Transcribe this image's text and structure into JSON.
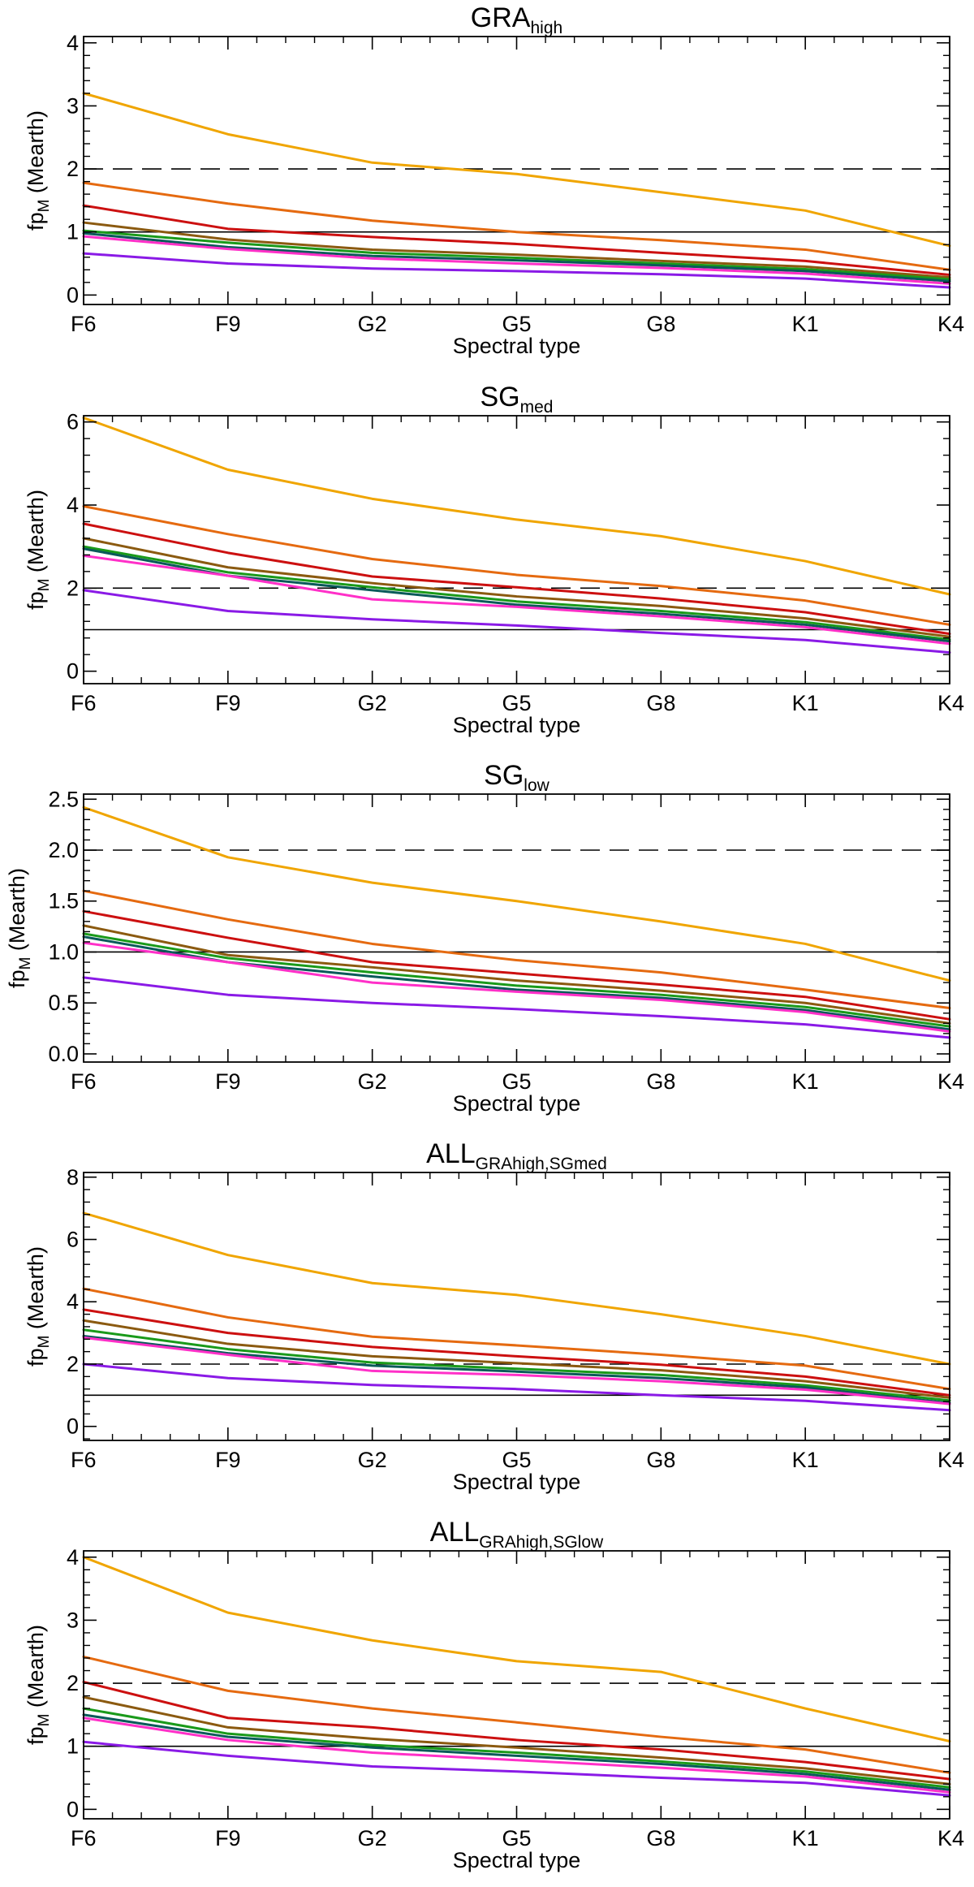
{
  "chart_data": [
    {
      "type": "line",
      "title": "GRA",
      "title_sub": "high",
      "xlabel": "Spectral type",
      "ylabel_main": "fp",
      "ylabel_sub": "M",
      "ylabel_tail": " (Mearth)",
      "categories": [
        "F6",
        "F9",
        "G2",
        "G5",
        "G8",
        "K1",
        "K4"
      ],
      "ylim": [
        -0.15,
        4.1
      ],
      "yticks": [
        0,
        1,
        2,
        3,
        4
      ],
      "ytick_labels": [
        "0",
        "1",
        "2",
        "3",
        "4"
      ],
      "yminor_step": 0.2,
      "reference_lines": [
        {
          "y": 2.0,
          "style": "dashed"
        },
        {
          "y": 1.0,
          "style": "solid"
        }
      ],
      "series": [
        {
          "color": "#F0A500",
          "values": [
            3.2,
            2.55,
            2.1,
            1.92,
            1.63,
            1.34,
            0.78
          ]
        },
        {
          "color": "#E56A10",
          "values": [
            1.78,
            1.45,
            1.18,
            1.0,
            0.87,
            0.72,
            0.4
          ]
        },
        {
          "color": "#CC1010",
          "values": [
            1.42,
            1.05,
            0.92,
            0.81,
            0.67,
            0.54,
            0.32
          ]
        },
        {
          "color": "#8B5A10",
          "values": [
            1.15,
            0.88,
            0.72,
            0.64,
            0.54,
            0.45,
            0.28
          ]
        },
        {
          "color": "#1A9A1A",
          "values": [
            1.02,
            0.83,
            0.67,
            0.59,
            0.5,
            0.41,
            0.25
          ]
        },
        {
          "color": "#0A5A5A",
          "values": [
            0.98,
            0.76,
            0.62,
            0.55,
            0.47,
            0.38,
            0.22
          ]
        },
        {
          "color": "#FF30C8",
          "values": [
            0.93,
            0.73,
            0.58,
            0.5,
            0.43,
            0.34,
            0.18
          ]
        },
        {
          "color": "#8A1AE6",
          "values": [
            0.66,
            0.5,
            0.42,
            0.38,
            0.33,
            0.26,
            0.12
          ]
        }
      ]
    },
    {
      "type": "line",
      "title": "SG",
      "title_sub": "med",
      "xlabel": "Spectral type",
      "ylabel_main": "fp",
      "ylabel_sub": "M",
      "ylabel_tail": " (Mearth)",
      "categories": [
        "F6",
        "F9",
        "G2",
        "G5",
        "G8",
        "K1",
        "K4"
      ],
      "ylim": [
        -0.3,
        6.15
      ],
      "yticks": [
        0,
        2,
        4,
        6
      ],
      "ytick_labels": [
        "0",
        "2",
        "4",
        "6"
      ],
      "yminor_step": 0.4,
      "reference_lines": [
        {
          "y": 2.0,
          "style": "dashed"
        },
        {
          "y": 1.0,
          "style": "solid"
        }
      ],
      "series": [
        {
          "color": "#F0A500",
          "values": [
            6.1,
            4.85,
            4.15,
            3.65,
            3.25,
            2.65,
            1.85
          ]
        },
        {
          "color": "#E56A10",
          "values": [
            3.97,
            3.3,
            2.7,
            2.32,
            2.05,
            1.7,
            1.12
          ]
        },
        {
          "color": "#CC1010",
          "values": [
            3.55,
            2.85,
            2.28,
            2.02,
            1.75,
            1.42,
            0.9
          ]
        },
        {
          "color": "#8B5A10",
          "values": [
            3.2,
            2.5,
            2.12,
            1.8,
            1.57,
            1.27,
            0.83
          ]
        },
        {
          "color": "#1A9A1A",
          "values": [
            3.0,
            2.38,
            2.02,
            1.68,
            1.45,
            1.18,
            0.76
          ]
        },
        {
          "color": "#0A5A5A",
          "values": [
            2.95,
            2.3,
            1.95,
            1.6,
            1.38,
            1.12,
            0.72
          ]
        },
        {
          "color": "#FF30C8",
          "values": [
            2.78,
            2.3,
            1.73,
            1.55,
            1.32,
            1.06,
            0.66
          ]
        },
        {
          "color": "#8A1AE6",
          "values": [
            1.95,
            1.45,
            1.25,
            1.1,
            0.92,
            0.75,
            0.45
          ]
        }
      ]
    },
    {
      "type": "line",
      "title": "SG",
      "title_sub": "low",
      "xlabel": "Spectral type",
      "ylabel_main": "fp",
      "ylabel_sub": "M",
      "ylabel_tail": " (Mearth)",
      "categories": [
        "F6",
        "F9",
        "G2",
        "G5",
        "G8",
        "K1",
        "K4"
      ],
      "ylim": [
        -0.08,
        2.55
      ],
      "yticks": [
        0.0,
        0.5,
        1.0,
        1.5,
        2.0,
        2.5
      ],
      "ytick_labels": [
        "0.0",
        "0.5",
        "1.0",
        "1.5",
        "2.0",
        "2.5"
      ],
      "yminor_step": 0.1,
      "reference_lines": [
        {
          "y": 2.0,
          "style": "dashed"
        },
        {
          "y": 1.0,
          "style": "solid"
        }
      ],
      "series": [
        {
          "color": "#F0A500",
          "values": [
            2.42,
            1.93,
            1.68,
            1.5,
            1.3,
            1.08,
            0.72
          ]
        },
        {
          "color": "#E56A10",
          "values": [
            1.6,
            1.32,
            1.08,
            0.92,
            0.8,
            0.63,
            0.45
          ]
        },
        {
          "color": "#CC1010",
          "values": [
            1.4,
            1.14,
            0.9,
            0.79,
            0.68,
            0.56,
            0.34
          ]
        },
        {
          "color": "#8B5A10",
          "values": [
            1.26,
            0.97,
            0.85,
            0.72,
            0.62,
            0.5,
            0.3
          ]
        },
        {
          "color": "#1A9A1A",
          "values": [
            1.18,
            0.94,
            0.8,
            0.67,
            0.58,
            0.46,
            0.27
          ]
        },
        {
          "color": "#0A5A5A",
          "values": [
            1.15,
            0.9,
            0.76,
            0.63,
            0.55,
            0.43,
            0.24
          ]
        },
        {
          "color": "#FF30C8",
          "values": [
            1.09,
            0.9,
            0.7,
            0.61,
            0.53,
            0.41,
            0.22
          ]
        },
        {
          "color": "#8A1AE6",
          "values": [
            0.75,
            0.58,
            0.5,
            0.44,
            0.37,
            0.29,
            0.16
          ]
        }
      ]
    },
    {
      "type": "line",
      "title": "ALL",
      "title_sub": "GRAhigh,SGmed",
      "xlabel": "Spectral type",
      "ylabel_main": "fp",
      "ylabel_sub": "M",
      "ylabel_tail": " (Mearth)",
      "categories": [
        "F6",
        "F9",
        "G2",
        "G5",
        "G8",
        "K1",
        "K4"
      ],
      "ylim": [
        -0.45,
        8.15
      ],
      "yticks": [
        0,
        2,
        4,
        6,
        8
      ],
      "ytick_labels": [
        "0",
        "2",
        "4",
        "6",
        "8"
      ],
      "yminor_step": 0.4,
      "reference_lines": [
        {
          "y": 2.0,
          "style": "dashed"
        },
        {
          "y": 1.0,
          "style": "solid"
        }
      ],
      "series": [
        {
          "color": "#F0A500",
          "values": [
            6.85,
            5.5,
            4.6,
            4.22,
            3.6,
            2.9,
            2.0
          ]
        },
        {
          "color": "#E56A10",
          "values": [
            4.42,
            3.5,
            2.88,
            2.6,
            2.3,
            1.95,
            1.2
          ]
        },
        {
          "color": "#CC1010",
          "values": [
            3.75,
            3.0,
            2.55,
            2.25,
            1.98,
            1.6,
            1.0
          ]
        },
        {
          "color": "#8B5A10",
          "values": [
            3.4,
            2.65,
            2.25,
            2.03,
            1.8,
            1.45,
            0.92
          ]
        },
        {
          "color": "#1A9A1A",
          "values": [
            3.1,
            2.48,
            2.05,
            1.85,
            1.65,
            1.32,
            0.83
          ]
        },
        {
          "color": "#0A5A5A",
          "values": [
            2.9,
            2.35,
            1.95,
            1.76,
            1.55,
            1.25,
            0.75
          ]
        },
        {
          "color": "#FF30C8",
          "values": [
            2.85,
            2.3,
            1.78,
            1.65,
            1.45,
            1.18,
            0.72
          ]
        },
        {
          "color": "#8A1AE6",
          "values": [
            2.0,
            1.55,
            1.33,
            1.2,
            1.0,
            0.82,
            0.52
          ]
        }
      ]
    },
    {
      "type": "line",
      "title": "ALL",
      "title_sub": "GRAhigh,SGlow",
      "xlabel": "Spectral type",
      "ylabel_main": "fp",
      "ylabel_sub": "M",
      "ylabel_tail": " (Mearth)",
      "categories": [
        "F6",
        "F9",
        "G2",
        "G5",
        "G8",
        "K1",
        "K4"
      ],
      "ylim": [
        -0.15,
        4.1
      ],
      "yticks": [
        0,
        1,
        2,
        3,
        4
      ],
      "ytick_labels": [
        "0",
        "1",
        "2",
        "3",
        "4"
      ],
      "yminor_step": 0.2,
      "reference_lines": [
        {
          "y": 2.0,
          "style": "dashed"
        },
        {
          "y": 1.0,
          "style": "solid"
        }
      ],
      "series": [
        {
          "color": "#F0A500",
          "values": [
            4.0,
            3.12,
            2.68,
            2.35,
            2.18,
            1.6,
            1.08
          ]
        },
        {
          "color": "#E56A10",
          "values": [
            2.42,
            1.88,
            1.6,
            1.38,
            1.15,
            0.95,
            0.58
          ]
        },
        {
          "color": "#CC1010",
          "values": [
            2.02,
            1.45,
            1.3,
            1.1,
            0.95,
            0.75,
            0.48
          ]
        },
        {
          "color": "#8B5A10",
          "values": [
            1.78,
            1.3,
            1.12,
            0.98,
            0.82,
            0.65,
            0.4
          ]
        },
        {
          "color": "#1A9A1A",
          "values": [
            1.6,
            1.2,
            1.02,
            0.9,
            0.76,
            0.6,
            0.35
          ]
        },
        {
          "color": "#0A5A5A",
          "values": [
            1.5,
            1.15,
            0.98,
            0.85,
            0.72,
            0.56,
            0.31
          ]
        },
        {
          "color": "#FF30C8",
          "values": [
            1.45,
            1.1,
            0.9,
            0.78,
            0.66,
            0.52,
            0.27
          ]
        },
        {
          "color": "#8A1AE6",
          "values": [
            1.07,
            0.85,
            0.68,
            0.6,
            0.5,
            0.42,
            0.22
          ]
        }
      ]
    }
  ]
}
